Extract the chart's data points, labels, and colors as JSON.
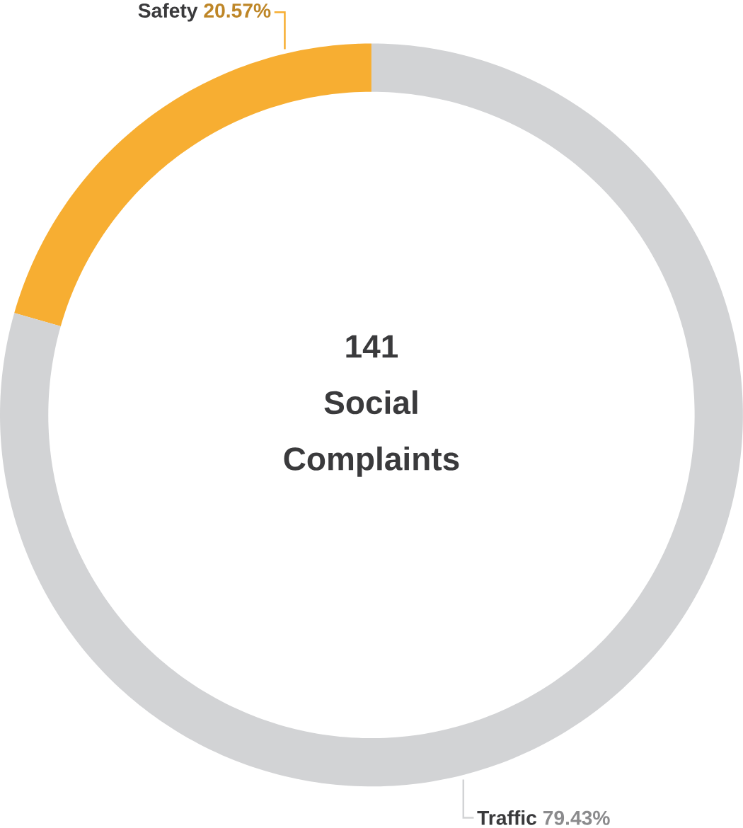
{
  "chart_data": {
    "type": "donut",
    "categories": [
      "Safety",
      "Traffic"
    ],
    "values": [
      20.57,
      79.43
    ],
    "colors": [
      "#f7ae32",
      "#d2d3d5"
    ],
    "value_labels": [
      "20.57%",
      "79.43%"
    ],
    "annotations": [
      "141",
      "Social Complaints"
    ]
  }
}
